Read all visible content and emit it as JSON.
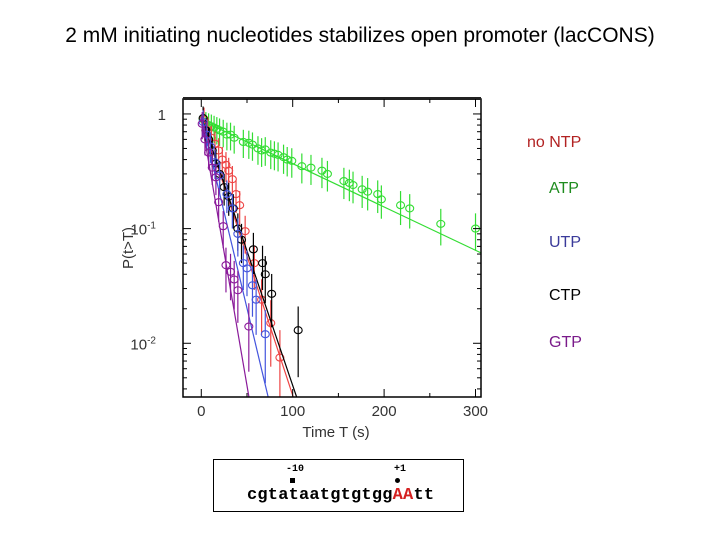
{
  "title": "2 mM initiating nucleotides stabilizes open promoter (lacCONS)",
  "legend": [
    {
      "label": "no NTP",
      "color": "#b22222"
    },
    {
      "label": "ATP",
      "color": "#1e8c1e"
    },
    {
      "label": "UTP",
      "color": "#3a3a9a"
    },
    {
      "label": "CTP",
      "color": "#000000"
    },
    {
      "label": "GTP",
      "color": "#7a1a8a"
    }
  ],
  "sequence": {
    "prefix": "cgtataatgtgtgg",
    "highlight": "AA",
    "suffix": "tt",
    "marker_minus10": "-10",
    "marker_plus1": "+1"
  },
  "chart_data": {
    "type": "scatter",
    "title": "",
    "xlabel": "Time T (s)",
    "ylabel": "P(t>T)",
    "xlim": [
      -20,
      306
    ],
    "ylim": [
      0.0034,
      1.35
    ],
    "yscale": "log",
    "grid": false,
    "legend_placement": "right, outside",
    "x_ticks": [
      "0",
      "100",
      "200",
      "300"
    ],
    "y_ticks": [
      {
        "value": 1,
        "label": "1"
      },
      {
        "value": 0.1,
        "label": "10",
        "exp": "-1"
      },
      {
        "value": 0.01,
        "label": "10",
        "exp": "-2"
      }
    ],
    "series": [
      {
        "name": "ATP",
        "color": "#33dd33",
        "fit": {
          "p0": 0.88,
          "k": 0.0087
        },
        "points": [
          [
            2,
            0.9
          ],
          [
            5,
            0.82
          ],
          [
            8,
            0.8
          ],
          [
            11,
            0.78
          ],
          [
            14,
            0.76
          ],
          [
            17,
            0.74
          ],
          [
            20,
            0.72
          ],
          [
            24,
            0.7
          ],
          [
            28,
            0.66
          ],
          [
            32,
            0.66
          ],
          [
            36,
            0.62
          ],
          [
            46,
            0.57
          ],
          [
            52,
            0.56
          ],
          [
            56,
            0.54
          ],
          [
            62,
            0.5
          ],
          [
            66,
            0.48
          ],
          [
            70,
            0.49
          ],
          [
            76,
            0.46
          ],
          [
            80,
            0.45
          ],
          [
            84,
            0.44
          ],
          [
            90,
            0.42
          ],
          [
            94,
            0.4
          ],
          [
            99,
            0.39
          ],
          [
            110,
            0.35
          ],
          [
            120,
            0.34
          ],
          [
            132,
            0.32
          ],
          [
            138,
            0.3
          ],
          [
            156,
            0.26
          ],
          [
            162,
            0.25
          ],
          [
            166,
            0.24
          ],
          [
            176,
            0.22
          ],
          [
            182,
            0.21
          ],
          [
            193,
            0.2
          ],
          [
            197,
            0.18
          ],
          [
            218,
            0.16
          ],
          [
            228,
            0.15
          ],
          [
            262,
            0.11
          ],
          [
            300,
            0.1
          ]
        ]
      },
      {
        "name": "no NTP",
        "color": "#ee4444",
        "fit": {
          "p0": 0.95,
          "k": 0.056
        },
        "points": [
          [
            3,
            0.9
          ],
          [
            7,
            0.72
          ],
          [
            11,
            0.62
          ],
          [
            15,
            0.55
          ],
          [
            19,
            0.48
          ],
          [
            23,
            0.4
          ],
          [
            27,
            0.36
          ],
          [
            30,
            0.32
          ],
          [
            34,
            0.27
          ],
          [
            38,
            0.2
          ],
          [
            42,
            0.16
          ],
          [
            48,
            0.095
          ],
          [
            58,
            0.05
          ],
          [
            66,
            0.024
          ],
          [
            76,
            0.015
          ],
          [
            86,
            0.0075
          ]
        ]
      },
      {
        "name": "CTP",
        "color": "#000000",
        "fit": {
          "p0": 0.95,
          "k": 0.054
        },
        "points": [
          [
            2,
            0.92
          ],
          [
            5,
            0.72
          ],
          [
            8,
            0.6
          ],
          [
            12,
            0.48
          ],
          [
            16,
            0.37
          ],
          [
            20,
            0.3
          ],
          [
            25,
            0.23
          ],
          [
            30,
            0.19
          ],
          [
            35,
            0.15
          ],
          [
            40,
            0.1
          ],
          [
            44,
            0.08
          ],
          [
            57,
            0.066
          ],
          [
            67,
            0.05
          ],
          [
            70,
            0.04
          ],
          [
            77,
            0.027
          ],
          [
            106,
            0.013
          ]
        ]
      },
      {
        "name": "UTP",
        "color": "#4455dd",
        "fit": {
          "p0": 0.95,
          "k": 0.077
        },
        "points": [
          [
            2,
            0.85
          ],
          [
            6,
            0.66
          ],
          [
            10,
            0.52
          ],
          [
            15,
            0.38
          ],
          [
            20,
            0.29
          ],
          [
            28,
            0.2
          ],
          [
            34,
            0.15
          ],
          [
            40,
            0.09
          ],
          [
            46,
            0.05
          ],
          [
            50,
            0.045
          ],
          [
            56,
            0.032
          ],
          [
            60,
            0.024
          ],
          [
            70,
            0.012
          ]
        ]
      },
      {
        "name": "GTP",
        "color": "#8a1a9a",
        "fit": {
          "p0": 0.9,
          "k": 0.107
        },
        "points": [
          [
            1,
            0.82
          ],
          [
            4,
            0.6
          ],
          [
            8,
            0.46
          ],
          [
            12,
            0.34
          ],
          [
            16,
            0.28
          ],
          [
            19,
            0.17
          ],
          [
            24,
            0.105
          ],
          [
            27,
            0.048
          ],
          [
            32,
            0.042
          ],
          [
            36,
            0.036
          ],
          [
            40,
            0.029
          ],
          [
            52,
            0.014
          ]
        ]
      }
    ]
  }
}
